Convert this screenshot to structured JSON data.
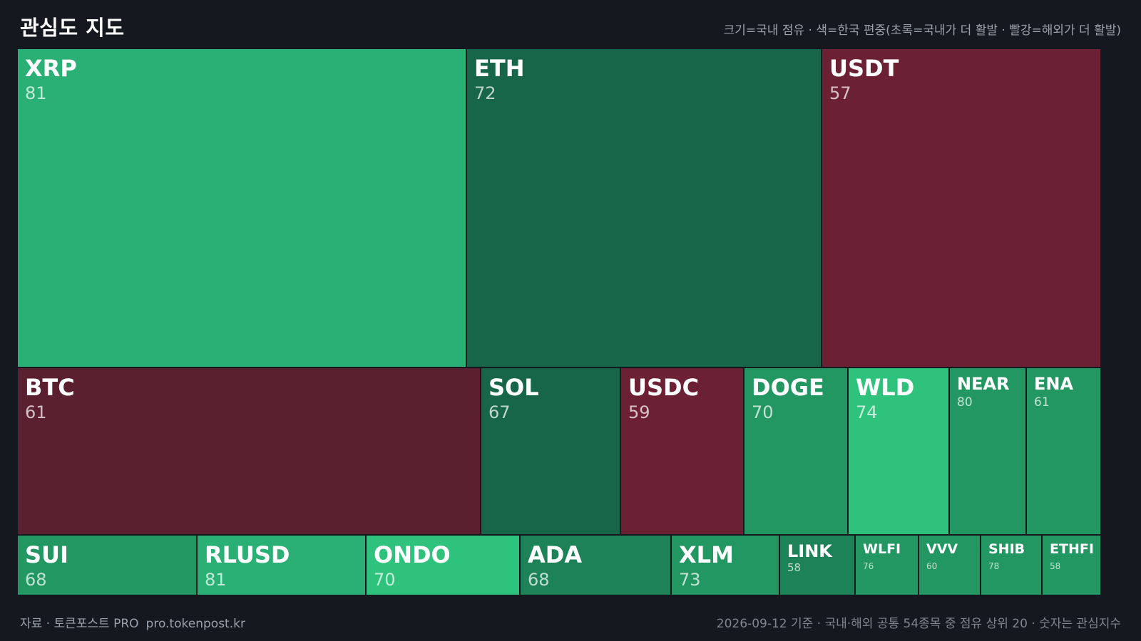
{
  "header": {
    "title": "관심도 지도",
    "legend": "크기=국내 점유 · 색=한국 편중(초록=국내가 더 활발 · 빨강=해외가 더 활발)"
  },
  "footer": {
    "source": "자료 · 토큰포스트 PRO",
    "url": "pro.tokenpost.kr",
    "note": "2026-09-12 기준 · 국내·해외 공통 54종목 중 점유 상위 20 · 숫자는 관심지수"
  },
  "colors": {
    "background": "#15181e",
    "green_bright": "#2fc27c",
    "green": "#2ab074",
    "green_mid": "#239762",
    "green_dark": "#1d8257",
    "green_deep": "#17664a",
    "red": "#6b2033",
    "red_dark": "#5a2030"
  },
  "chart_data": {
    "type": "treemap",
    "tiles": [
      {
        "symbol": "XRP",
        "score": 81,
        "color": "#2ab074"
      },
      {
        "symbol": "ETH",
        "score": 72,
        "color": "#17664a"
      },
      {
        "symbol": "USDT",
        "score": 57,
        "color": "#6b2033"
      },
      {
        "symbol": "BTC",
        "score": 61,
        "color": "#5a2030"
      },
      {
        "symbol": "SOL",
        "score": 67,
        "color": "#17664a"
      },
      {
        "symbol": "USDC",
        "score": 59,
        "color": "#6b2033"
      },
      {
        "symbol": "DOGE",
        "score": 70,
        "color": "#239762"
      },
      {
        "symbol": "WLD",
        "score": 74,
        "color": "#2fc27c"
      },
      {
        "symbol": "NEAR",
        "score": 80,
        "color": "#239762"
      },
      {
        "symbol": "ENA",
        "score": 61,
        "color": "#239762"
      },
      {
        "symbol": "SUI",
        "score": 68,
        "color": "#239762"
      },
      {
        "symbol": "RLUSD",
        "score": 81,
        "color": "#2ab074"
      },
      {
        "symbol": "ONDO",
        "score": 70,
        "color": "#2fc27c"
      },
      {
        "symbol": "ADA",
        "score": 68,
        "color": "#1d8257"
      },
      {
        "symbol": "XLM",
        "score": 73,
        "color": "#239762"
      },
      {
        "symbol": "LINK",
        "score": 58,
        "color": "#1d8257"
      },
      {
        "symbol": "WLFI",
        "score": 76,
        "color": "#239762"
      },
      {
        "symbol": "VVV",
        "score": 60,
        "color": "#239762"
      },
      {
        "symbol": "SHIB",
        "score": 78,
        "color": "#239762"
      },
      {
        "symbol": "ETHFI",
        "score": 58,
        "color": "#239762"
      }
    ]
  }
}
